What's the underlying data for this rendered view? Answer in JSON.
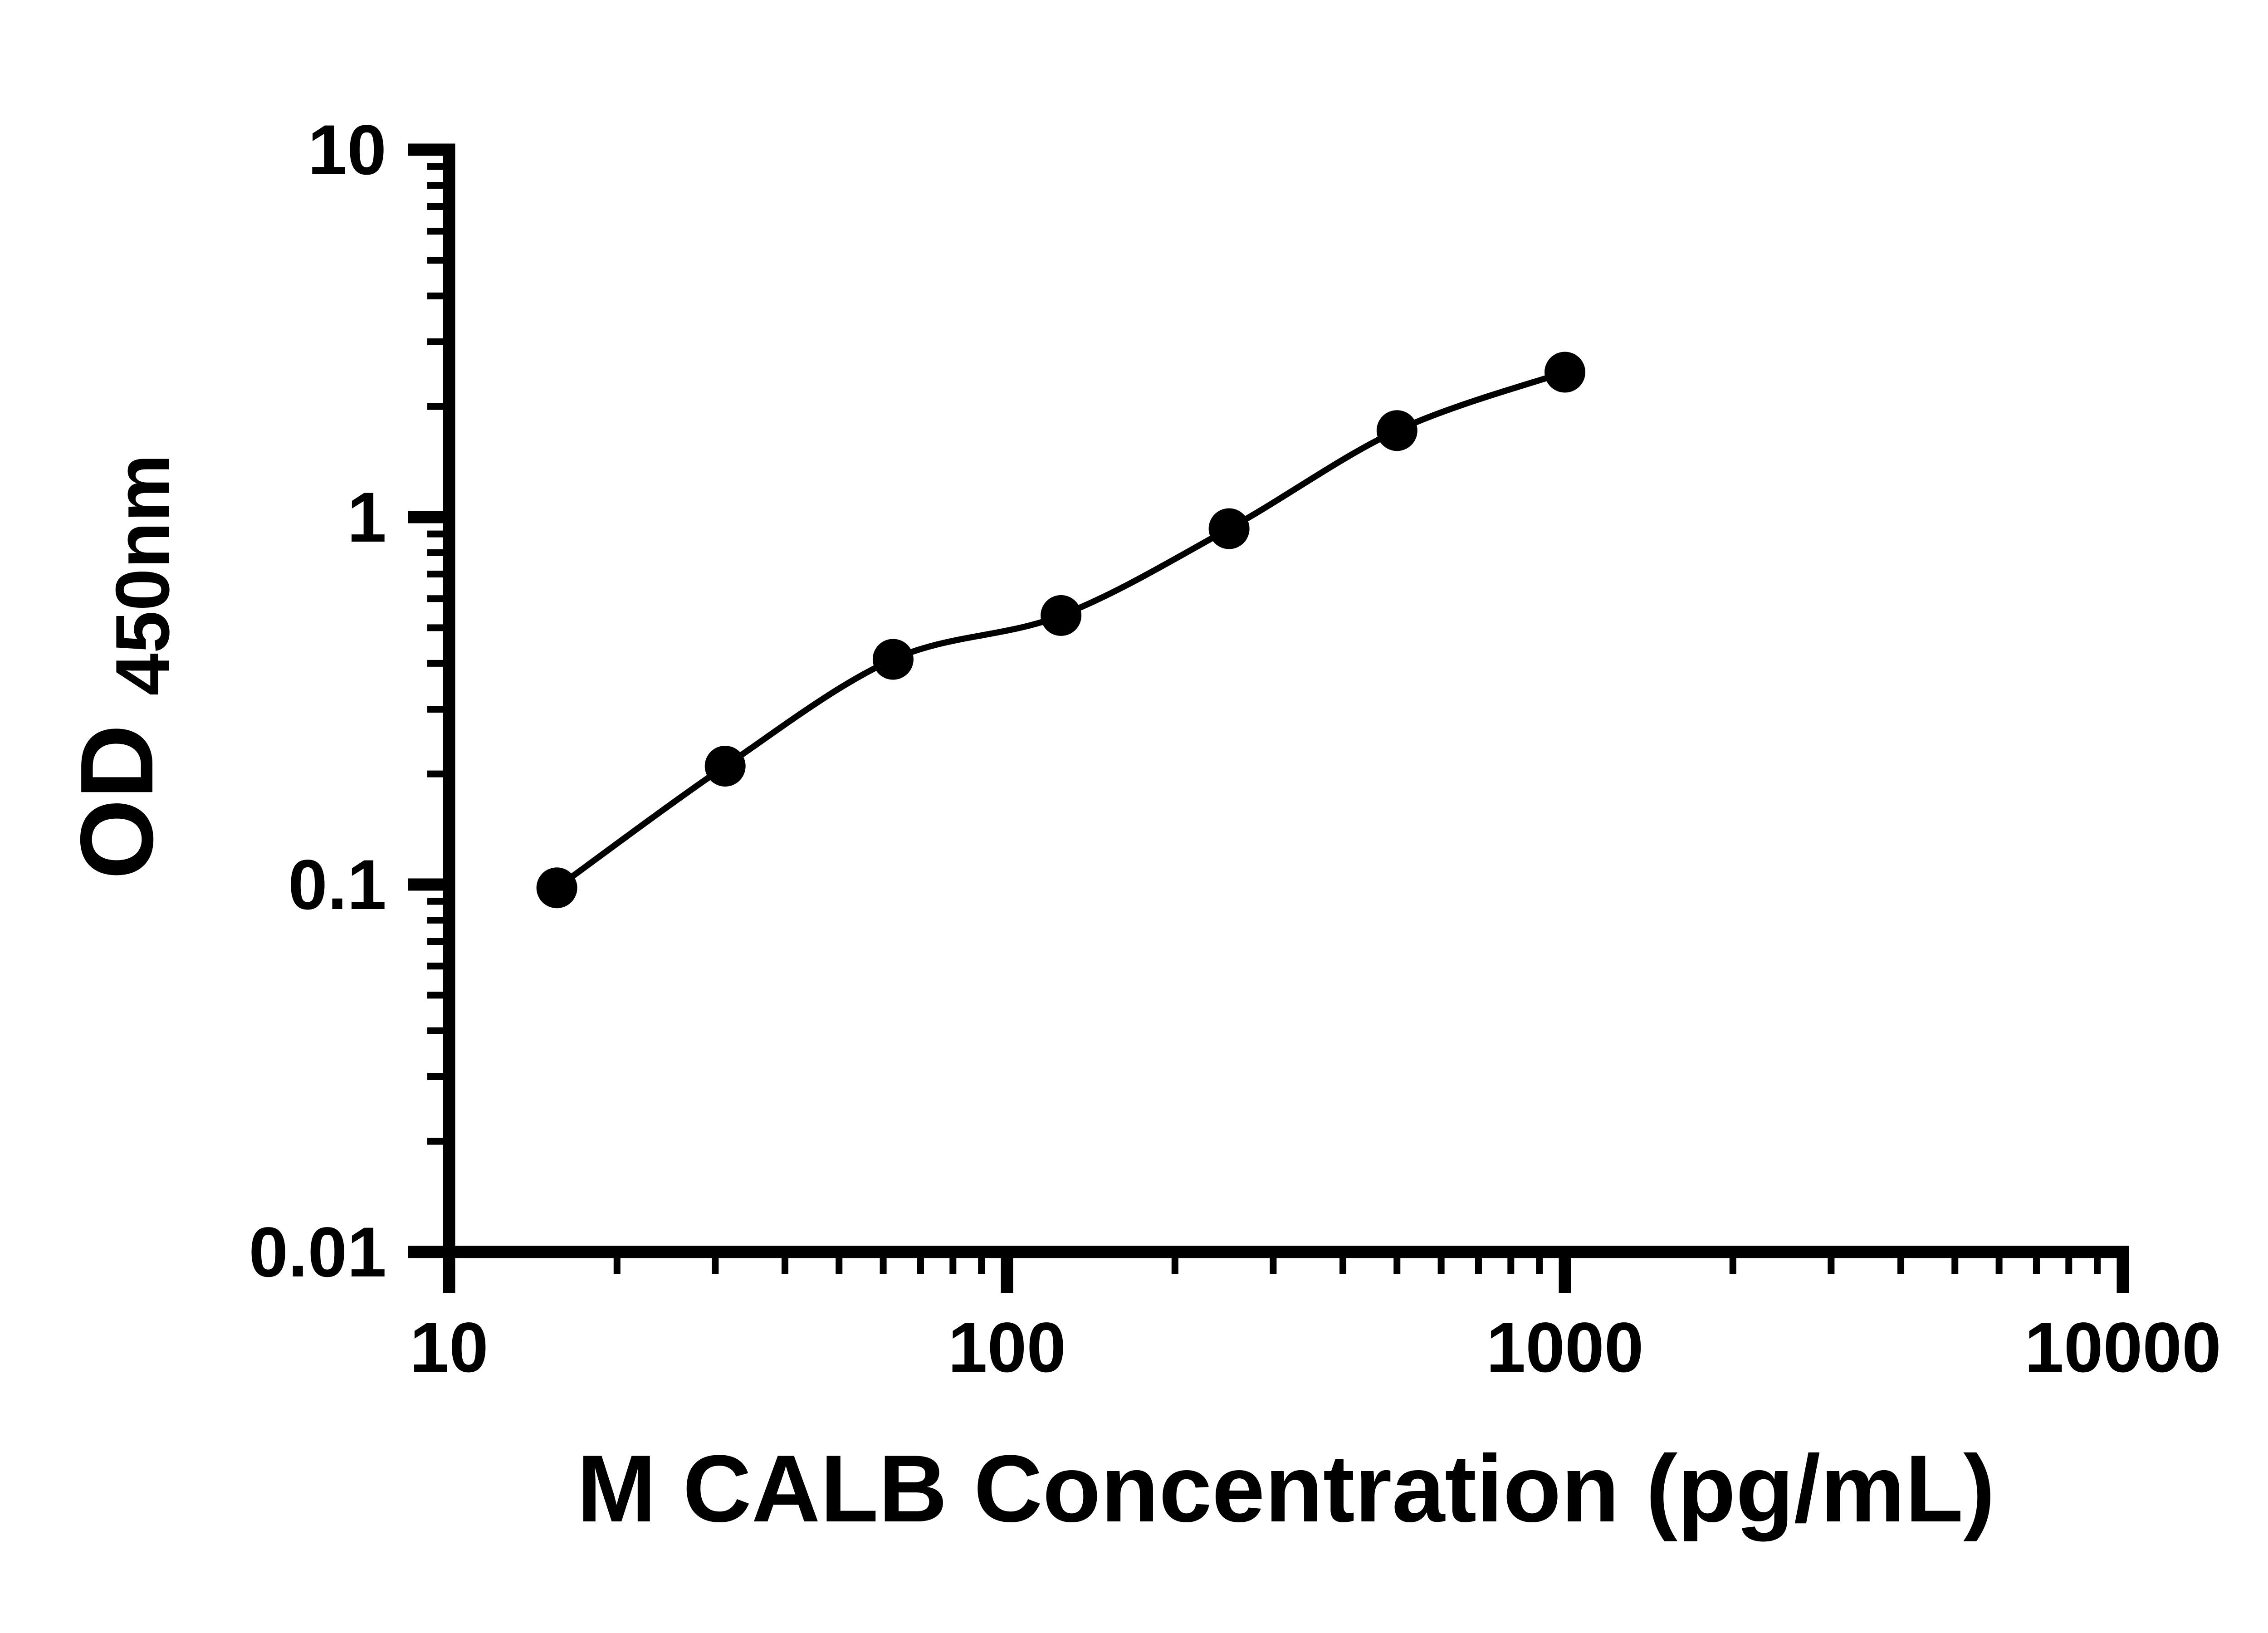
{
  "figure": {
    "background": "#ffffff",
    "ink_color": "#000000"
  },
  "chart_data": {
    "type": "scatter",
    "title": "",
    "xlabel": "M CALB Concentration (pg/mL)",
    "ylabel_main": "OD",
    "ylabel_sub": "450nm",
    "xscale": "log",
    "yscale": "log",
    "xlim": [
      10,
      10000
    ],
    "ylim": [
      0.01,
      10
    ],
    "x_tick_values": [
      10,
      100,
      1000,
      10000
    ],
    "x_tick_labels": [
      "10",
      "100",
      "1000",
      "10000"
    ],
    "y_tick_values": [
      0.01,
      0.1,
      1,
      10
    ],
    "y_tick_labels": [
      "0.01",
      "0.1",
      "1",
      "10"
    ],
    "minor_ticks": true,
    "grid": false,
    "legend": "none",
    "series": [
      {
        "marker": "filled-circle",
        "line": "smooth-fit-curve",
        "color": "#000000",
        "points": [
          {
            "x": 15.6,
            "y": 0.098
          },
          {
            "x": 31.25,
            "y": 0.21
          },
          {
            "x": 62.5,
            "y": 0.41
          },
          {
            "x": 125,
            "y": 0.54
          },
          {
            "x": 250,
            "y": 0.93
          },
          {
            "x": 500,
            "y": 1.72
          },
          {
            "x": 1000,
            "y": 2.48
          }
        ]
      }
    ]
  }
}
